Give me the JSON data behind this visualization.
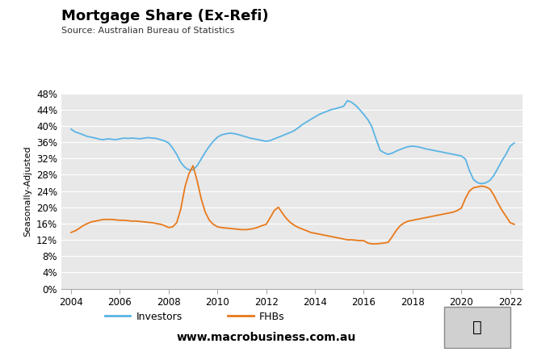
{
  "title": "Mortgage Share (Ex-Refi)",
  "source": "Source: Australian Bureau of Statistics",
  "ylabel": "Seasonally-Adjusted",
  "website": "www.macrobusiness.com.au",
  "ylim": [
    0,
    0.48
  ],
  "yticks": [
    0,
    0.04,
    0.08,
    0.12,
    0.16,
    0.2,
    0.24,
    0.28,
    0.32,
    0.36,
    0.4,
    0.44,
    0.48
  ],
  "xticks": [
    2004,
    2006,
    2008,
    2010,
    2012,
    2014,
    2016,
    2018,
    2020,
    2022
  ],
  "xlim_start": 2003.6,
  "xlim_end": 2022.5,
  "background_color": "#e8e8e8",
  "fig_background": "#ffffff",
  "investor_color": "#5ab4e5",
  "fhb_color": "#e8791a",
  "logo_bg": "#cc1111",
  "investors_x": [
    2004.0,
    2004.17,
    2004.33,
    2004.5,
    2004.67,
    2004.83,
    2005.0,
    2005.17,
    2005.33,
    2005.5,
    2005.67,
    2005.83,
    2006.0,
    2006.17,
    2006.33,
    2006.5,
    2006.67,
    2006.83,
    2007.0,
    2007.17,
    2007.33,
    2007.5,
    2007.67,
    2007.83,
    2008.0,
    2008.17,
    2008.33,
    2008.5,
    2008.67,
    2008.83,
    2009.0,
    2009.17,
    2009.33,
    2009.5,
    2009.67,
    2009.83,
    2010.0,
    2010.17,
    2010.33,
    2010.5,
    2010.67,
    2010.83,
    2011.0,
    2011.17,
    2011.33,
    2011.5,
    2011.67,
    2011.83,
    2012.0,
    2012.17,
    2012.33,
    2012.5,
    2012.67,
    2012.83,
    2013.0,
    2013.17,
    2013.33,
    2013.5,
    2013.67,
    2013.83,
    2014.0,
    2014.17,
    2014.33,
    2014.5,
    2014.67,
    2014.83,
    2015.0,
    2015.17,
    2015.33,
    2015.5,
    2015.67,
    2015.83,
    2016.0,
    2016.17,
    2016.33,
    2016.5,
    2016.67,
    2016.83,
    2017.0,
    2017.17,
    2017.33,
    2017.5,
    2017.67,
    2017.83,
    2018.0,
    2018.17,
    2018.33,
    2018.5,
    2018.67,
    2018.83,
    2019.0,
    2019.17,
    2019.33,
    2019.5,
    2019.67,
    2019.83,
    2020.0,
    2020.17,
    2020.33,
    2020.5,
    2020.67,
    2020.83,
    2021.0,
    2021.17,
    2021.33,
    2021.5,
    2021.67,
    2021.83,
    2022.0,
    2022.17
  ],
  "investors_y": [
    0.392,
    0.385,
    0.382,
    0.378,
    0.374,
    0.372,
    0.37,
    0.367,
    0.366,
    0.368,
    0.367,
    0.366,
    0.368,
    0.37,
    0.369,
    0.37,
    0.369,
    0.368,
    0.37,
    0.371,
    0.37,
    0.369,
    0.366,
    0.363,
    0.358,
    0.345,
    0.33,
    0.31,
    0.298,
    0.292,
    0.292,
    0.302,
    0.318,
    0.335,
    0.35,
    0.362,
    0.372,
    0.378,
    0.38,
    0.382,
    0.381,
    0.379,
    0.376,
    0.373,
    0.37,
    0.368,
    0.366,
    0.364,
    0.362,
    0.364,
    0.368,
    0.372,
    0.376,
    0.38,
    0.384,
    0.389,
    0.396,
    0.404,
    0.41,
    0.416,
    0.422,
    0.428,
    0.432,
    0.436,
    0.44,
    0.442,
    0.445,
    0.448,
    0.462,
    0.458,
    0.45,
    0.44,
    0.428,
    0.415,
    0.398,
    0.368,
    0.34,
    0.334,
    0.33,
    0.333,
    0.338,
    0.342,
    0.346,
    0.349,
    0.35,
    0.349,
    0.347,
    0.344,
    0.342,
    0.34,
    0.338,
    0.336,
    0.334,
    0.332,
    0.33,
    0.328,
    0.326,
    0.318,
    0.29,
    0.268,
    0.26,
    0.258,
    0.26,
    0.266,
    0.278,
    0.296,
    0.315,
    0.33,
    0.35,
    0.358
  ],
  "fhbs_x": [
    2004.0,
    2004.17,
    2004.33,
    2004.5,
    2004.67,
    2004.83,
    2005.0,
    2005.17,
    2005.33,
    2005.5,
    2005.67,
    2005.83,
    2006.0,
    2006.17,
    2006.33,
    2006.5,
    2006.67,
    2006.83,
    2007.0,
    2007.17,
    2007.33,
    2007.5,
    2007.67,
    2007.83,
    2008.0,
    2008.17,
    2008.33,
    2008.5,
    2008.67,
    2008.83,
    2009.0,
    2009.17,
    2009.33,
    2009.5,
    2009.67,
    2009.83,
    2010.0,
    2010.17,
    2010.33,
    2010.5,
    2010.67,
    2010.83,
    2011.0,
    2011.17,
    2011.33,
    2011.5,
    2011.67,
    2011.83,
    2012.0,
    2012.17,
    2012.33,
    2012.5,
    2012.67,
    2012.83,
    2013.0,
    2013.17,
    2013.33,
    2013.5,
    2013.67,
    2013.83,
    2014.0,
    2014.17,
    2014.33,
    2014.5,
    2014.67,
    2014.83,
    2015.0,
    2015.17,
    2015.33,
    2015.5,
    2015.67,
    2015.83,
    2016.0,
    2016.17,
    2016.33,
    2016.5,
    2016.67,
    2016.83,
    2017.0,
    2017.17,
    2017.33,
    2017.5,
    2017.67,
    2017.83,
    2018.0,
    2018.17,
    2018.33,
    2018.5,
    2018.67,
    2018.83,
    2019.0,
    2019.17,
    2019.33,
    2019.5,
    2019.67,
    2019.83,
    2020.0,
    2020.17,
    2020.33,
    2020.5,
    2020.67,
    2020.83,
    2021.0,
    2021.17,
    2021.33,
    2021.5,
    2021.67,
    2021.83,
    2022.0,
    2022.17
  ],
  "fhbs_y": [
    0.138,
    0.142,
    0.148,
    0.155,
    0.16,
    0.164,
    0.166,
    0.168,
    0.17,
    0.17,
    0.17,
    0.169,
    0.168,
    0.168,
    0.167,
    0.166,
    0.166,
    0.165,
    0.164,
    0.163,
    0.162,
    0.16,
    0.158,
    0.155,
    0.15,
    0.152,
    0.162,
    0.196,
    0.25,
    0.282,
    0.302,
    0.265,
    0.222,
    0.188,
    0.168,
    0.158,
    0.152,
    0.15,
    0.149,
    0.148,
    0.147,
    0.146,
    0.145,
    0.145,
    0.146,
    0.148,
    0.151,
    0.155,
    0.158,
    0.175,
    0.192,
    0.2,
    0.185,
    0.172,
    0.162,
    0.155,
    0.15,
    0.146,
    0.142,
    0.138,
    0.136,
    0.134,
    0.132,
    0.13,
    0.128,
    0.126,
    0.124,
    0.122,
    0.12,
    0.12,
    0.119,
    0.118,
    0.118,
    0.112,
    0.11,
    0.11,
    0.111,
    0.112,
    0.114,
    0.128,
    0.143,
    0.155,
    0.162,
    0.166,
    0.168,
    0.17,
    0.172,
    0.174,
    0.176,
    0.178,
    0.18,
    0.182,
    0.184,
    0.186,
    0.188,
    0.192,
    0.198,
    0.222,
    0.24,
    0.248,
    0.25,
    0.252,
    0.25,
    0.245,
    0.23,
    0.21,
    0.192,
    0.178,
    0.162,
    0.158
  ]
}
